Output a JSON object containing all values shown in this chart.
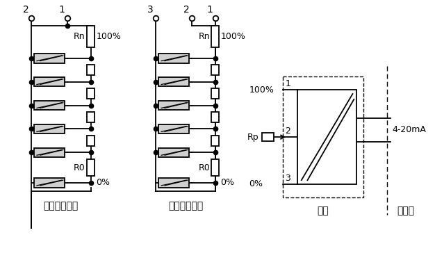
{
  "bg_color": "#ffffff",
  "line_color": "#000000",
  "label_2wire": "二线制变送器",
  "label_3wire": "三线制变送器",
  "label_site": "现场",
  "label_control": "控制室",
  "label_4_20mA": "4-20mA",
  "label_100pct": "100%",
  "label_0pct": "0%",
  "label_Rn": "Rn",
  "label_R0": "R0",
  "label_Rp": "Rp",
  "label_1": "1",
  "label_2": "2",
  "label_3": "3",
  "fig_w": 6.26,
  "fig_h": 3.97,
  "dpi": 100
}
